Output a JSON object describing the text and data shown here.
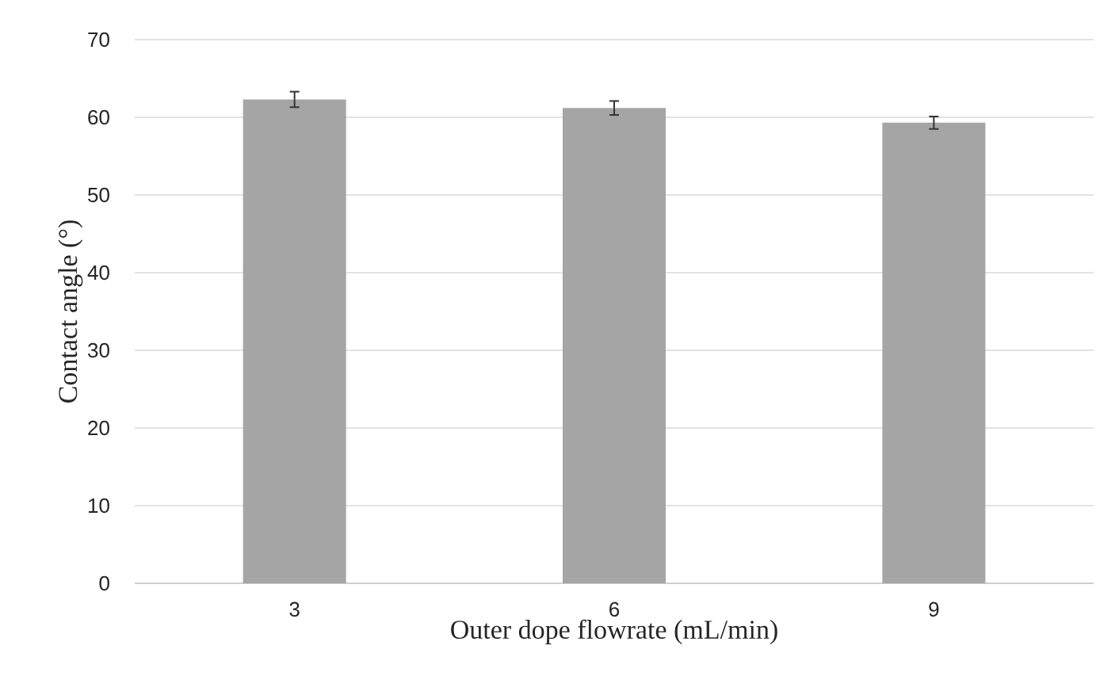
{
  "chart_data": {
    "type": "bar",
    "xlabel": "Outer dope flowrate (mL/min)",
    "ylabel": "Contact angle (°)",
    "categories": [
      "3",
      "6",
      "9"
    ],
    "values": [
      62.3,
      61.2,
      59.3
    ],
    "errors": [
      1.0,
      0.9,
      0.8
    ],
    "color": "#a5a5a5",
    "ylim": [
      0,
      70
    ],
    "yticks": [
      0,
      10,
      20,
      30,
      40,
      50,
      60,
      70
    ],
    "grid": "y"
  }
}
